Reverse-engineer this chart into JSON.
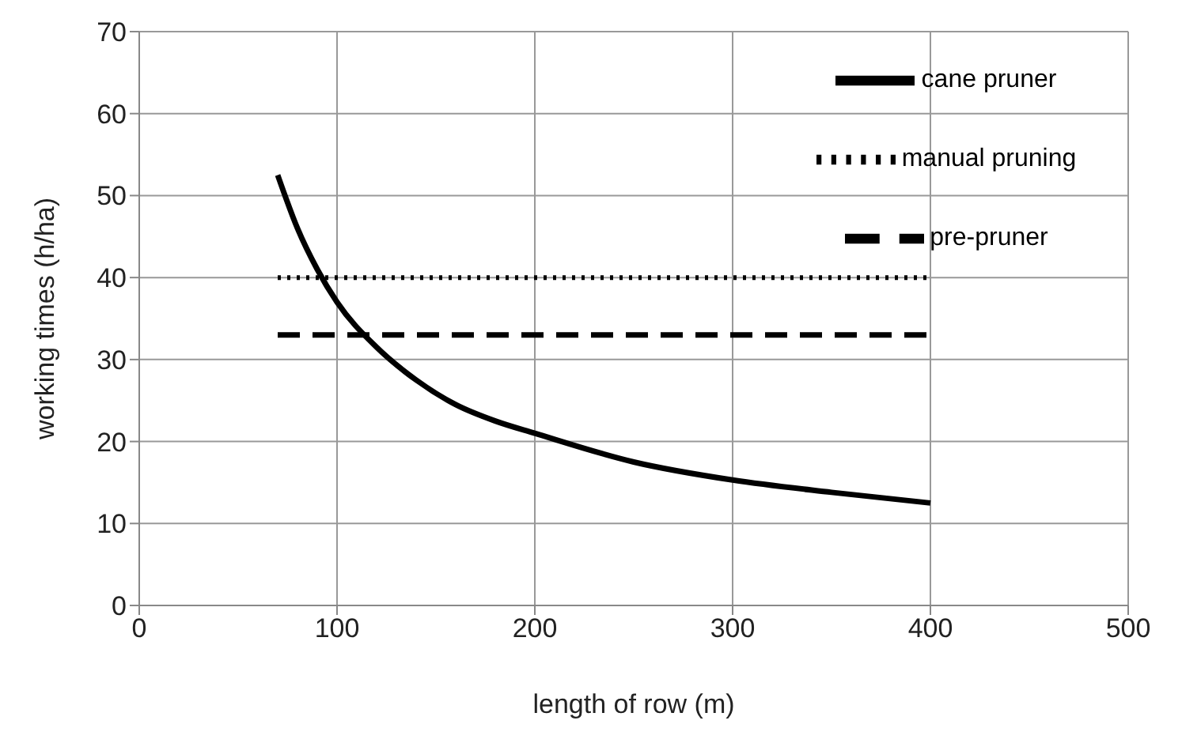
{
  "chart_data": {
    "type": "line",
    "xlabel": "length of row (m)",
    "ylabel": "working times (h/ha)",
    "xlim": [
      0,
      500
    ],
    "xticks": [
      0,
      100,
      200,
      300,
      400,
      500
    ],
    "ylim": [
      0,
      70
    ],
    "yticks": [
      0,
      10,
      20,
      30,
      40,
      50,
      60,
      70
    ],
    "grid": true,
    "legend": "top right",
    "marker": "none",
    "series": [
      {
        "name": "cane pruner",
        "color": "#000000",
        "line_style": "solid",
        "x": [
          70,
          80,
          90,
          100,
          120,
          140,
          160,
          180,
          200,
          250,
          300,
          350,
          400
        ],
        "values": [
          52.5,
          46,
          41,
          37,
          31.5,
          27.5,
          24.5,
          22.5,
          21,
          17.5,
          15.3,
          13.8,
          12.5
        ]
      },
      {
        "name": "manual pruning",
        "color": "#000000",
        "line_style": "dotted",
        "x": [
          70,
          400
        ],
        "values": [
          40,
          40
        ]
      },
      {
        "name": "pre-pruner",
        "color": "#000000",
        "line_style": "dashed",
        "x": [
          70,
          400
        ],
        "values": [
          33,
          33
        ]
      }
    ]
  }
}
